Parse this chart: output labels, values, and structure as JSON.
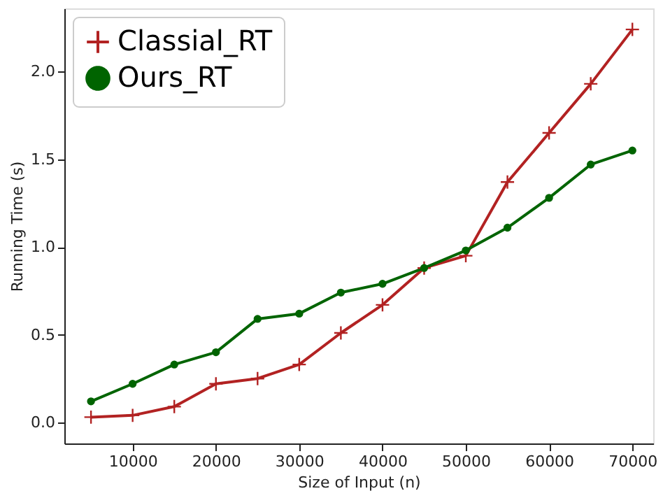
{
  "chart_data": {
    "type": "line",
    "xlabel": "Size of Input (n)",
    "ylabel": "Running Time (s)",
    "x": [
      5000,
      10000,
      15000,
      20000,
      25000,
      30000,
      35000,
      40000,
      45000,
      50000,
      55000,
      60000,
      65000,
      70000
    ],
    "series": [
      {
        "name": "Classial_RT",
        "color": "#b22222",
        "marker": "cross",
        "values": [
          0.03,
          0.04,
          0.09,
          0.22,
          0.25,
          0.33,
          0.51,
          0.67,
          0.88,
          0.95,
          1.37,
          1.65,
          1.93,
          2.24
        ]
      },
      {
        "name": "Ours_RT",
        "color": "#006400",
        "marker": "circle",
        "values": [
          0.12,
          0.22,
          0.33,
          0.4,
          0.59,
          0.62,
          0.74,
          0.79,
          0.88,
          0.98,
          1.11,
          1.28,
          1.47,
          1.55
        ]
      }
    ],
    "xlim": [
      1800,
      72500
    ],
    "ylim": [
      -0.12,
      2.36
    ],
    "xticks": [
      10000,
      20000,
      30000,
      40000,
      50000,
      60000,
      70000
    ],
    "yticks": [
      {
        "value": 0,
        "label": "0.0"
      },
      0.5,
      {
        "value": 1,
        "label": "1.0"
      },
      1.5,
      {
        "value": 2,
        "label": "2.0"
      }
    ],
    "grid": false,
    "legend": "top left",
    "line_style": "solid"
  }
}
